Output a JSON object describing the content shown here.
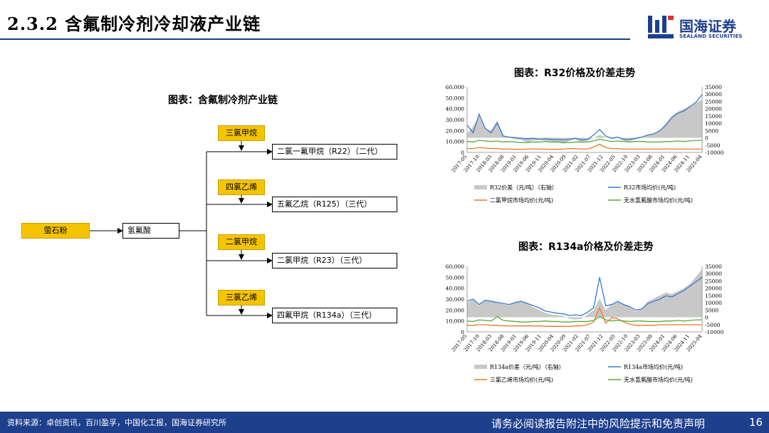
{
  "header": {
    "title": "2.3.2 含氟制冷剂冷却液产业链",
    "logo_text": "国海证券",
    "logo_sub": "SEALAND SECURITIES"
  },
  "flow": {
    "title": "图表：含氟制冷剂产业链",
    "source": "萤石粉",
    "middle": "氢氟酸",
    "inputs": [
      "三氯甲烷",
      "四氯乙烯",
      "二氯甲烷",
      "三氯乙烯"
    ],
    "products": [
      "二氯一氟甲烷（R22）（二代）",
      "五氟乙烷（R125）（三代）",
      "二氯甲烷（R23）（三代）",
      "四氟甲烷（R134a）（三代）"
    ]
  },
  "chart_data": [
    {
      "type": "line",
      "title": "图表：R32价格及价差走势",
      "x_ticks": [
        "2017-05",
        "2017-10",
        "2018-03",
        "2018-08",
        "2019-01",
        "2019-06",
        "2019-11",
        "2020-04",
        "2020-09",
        "2021-02",
        "2021-07",
        "2021-12",
        "2022-05",
        "2022-10",
        "2023-03",
        "2023-08",
        "2024-01",
        "2024-06",
        "2024-11",
        "2025-04"
      ],
      "y_left_ticks": [
        "60,000",
        "50,000",
        "40,000",
        "30,000",
        "20,000",
        "10,000",
        "0"
      ],
      "y_right_ticks": [
        "35000",
        "30000",
        "25000",
        "20000",
        "15000",
        "10000",
        "5000",
        "0",
        "-5000",
        "-10000"
      ],
      "ylim_left": [
        0,
        60000
      ],
      "ylim_right": [
        -10000,
        35000
      ],
      "series": [
        {
          "name": "R32价差（元/吨）（右轴）",
          "kind": "area",
          "axis": "right",
          "color": "#c8c8c8",
          "values": [
            3000,
            8000,
            15000,
            6000,
            5000,
            12000,
            2000,
            0,
            -1000,
            -1500,
            -3000,
            -2000,
            -1500,
            -2000,
            -2500,
            -3000,
            -4000,
            -2000,
            -1000,
            -3000,
            -2000,
            0,
            2000,
            500,
            -1000,
            0,
            -2000,
            -2500,
            -1000,
            0,
            2000,
            3000,
            5000,
            10000,
            15000,
            18000,
            20000,
            22000,
            24000,
            26000
          ]
        },
        {
          "name": "R32市场均价(元/吨)",
          "kind": "line",
          "axis": "left",
          "color": "#3a78c8",
          "values": [
            25000,
            18000,
            35000,
            22000,
            18000,
            27000,
            15000,
            14000,
            13500,
            13000,
            12500,
            13000,
            12000,
            12500,
            12000,
            12000,
            11500,
            12000,
            13000,
            11500,
            12000,
            16000,
            21000,
            15000,
            13000,
            14000,
            12000,
            12000,
            13000,
            14000,
            16000,
            17000,
            20000,
            25000,
            32000,
            36000,
            38000,
            42000,
            46000,
            53000
          ]
        },
        {
          "name": "二氯甲烷市场均价(元/吨)",
          "kind": "line",
          "axis": "left",
          "color": "#f07820",
          "values": [
            3500,
            3500,
            4500,
            4000,
            3500,
            3500,
            3000,
            3000,
            2800,
            2800,
            3000,
            3200,
            3000,
            3000,
            2800,
            2800,
            3000,
            3500,
            3500,
            3000,
            3200,
            5000,
            7500,
            4500,
            3500,
            3500,
            3000,
            3000,
            3000,
            3000,
            3000,
            3000,
            3000,
            3200,
            3000,
            3000,
            3000,
            3000,
            3000,
            3000
          ]
        },
        {
          "name": "无水氢氟酸市场均价(元/吨)",
          "kind": "line",
          "axis": "left",
          "color": "#5aaa3c",
          "values": [
            10000,
            9500,
            11000,
            10500,
            10000,
            10500,
            9500,
            10000,
            9500,
            9000,
            9000,
            9500,
            9500,
            10000,
            9500,
            9500,
            9000,
            9000,
            9500,
            9500,
            9500,
            10500,
            12000,
            11000,
            10000,
            10500,
            10000,
            9500,
            10000,
            10000,
            9500,
            9500,
            9500,
            10000,
            10000,
            10500,
            10000,
            10500,
            11000,
            11000
          ]
        }
      ]
    },
    {
      "type": "line",
      "title": "图表：R134a价格及价差走势",
      "x_ticks": [
        "2017-05",
        "2017-10",
        "2018-03",
        "2018-08",
        "2019-01",
        "2019-06",
        "2019-11",
        "2020-04",
        "2020-09",
        "2021-02",
        "2021-07",
        "2021-12",
        "2022-05",
        "2022-10",
        "2023-03",
        "2023-08",
        "2024-01",
        "2024-06",
        "2024-11",
        "2025-04"
      ],
      "y_left_ticks": [
        "60,000",
        "50,000",
        "40,000",
        "30,000",
        "20,000",
        "10,000",
        "0"
      ],
      "y_right_ticks": [
        "35000",
        "30000",
        "25000",
        "20000",
        "15000",
        "10000",
        "5000",
        "0",
        "-5000",
        "-10000"
      ],
      "ylim_left": [
        0,
        60000
      ],
      "ylim_right": [
        -10000,
        35000
      ],
      "series": [
        {
          "name": "R134a价差（元/吨）（右轴）",
          "kind": "area",
          "axis": "right",
          "color": "#c8c8c8",
          "values": [
            10000,
            12000,
            8000,
            12000,
            11000,
            10000,
            9000,
            8000,
            10000,
            11000,
            10000,
            7000,
            5000,
            3000,
            2000,
            1500,
            1000,
            -1000,
            -1500,
            -1000,
            2000,
            5000,
            13000,
            5000,
            9000,
            11000,
            9000,
            7000,
            4000,
            6000,
            11000,
            13000,
            15000,
            17000,
            16000,
            18000,
            20000,
            23000,
            28000,
            33000
          ]
        },
        {
          "name": "R134a市场均价(元/吨)",
          "kind": "line",
          "axis": "left",
          "color": "#3a78c8",
          "values": [
            28000,
            30000,
            25000,
            29000,
            28000,
            27000,
            26000,
            25000,
            27000,
            28000,
            26000,
            24000,
            22000,
            19000,
            18000,
            17000,
            16500,
            15000,
            15500,
            15000,
            18000,
            22000,
            50000,
            24000,
            25000,
            28000,
            25000,
            23000,
            20000,
            21000,
            26000,
            28000,
            30000,
            33000,
            32000,
            35000,
            38000,
            42000,
            46000,
            50000
          ]
        },
        {
          "name": "三氯乙烯市场均价(元/吨)",
          "kind": "line",
          "axis": "left",
          "color": "#f07820",
          "values": [
            6000,
            6000,
            6500,
            6500,
            6000,
            6000,
            5500,
            5500,
            5500,
            5500,
            5500,
            5500,
            5500,
            5000,
            5000,
            5000,
            5000,
            5000,
            5500,
            5500,
            6500,
            9000,
            22000,
            8000,
            13000,
            12000,
            9000,
            7000,
            6000,
            6000,
            6000,
            6000,
            6500,
            6500,
            6500,
            6500,
            6500,
            6500,
            6500,
            6500
          ]
        },
        {
          "name": "无水氢氟酸市场均价(元/吨)",
          "kind": "line",
          "axis": "left",
          "color": "#5aaa3c",
          "values": [
            10000,
            9500,
            11000,
            10500,
            10000,
            14000,
            10500,
            10000,
            9500,
            9000,
            9000,
            9500,
            9500,
            10000,
            9500,
            9500,
            9000,
            9000,
            9500,
            9500,
            9500,
            10500,
            14000,
            11000,
            10000,
            10500,
            10000,
            9500,
            10000,
            10000,
            9500,
            9500,
            9500,
            10000,
            10000,
            10500,
            10000,
            10500,
            11000,
            11000
          ]
        }
      ]
    }
  ],
  "footer": {
    "source": "资料来源：卓创资讯，百川盈孚，中国化工报，国海证券研究所",
    "disclaimer": "请务必阅读报告附注中的风险提示和免责声明",
    "page": "16"
  }
}
